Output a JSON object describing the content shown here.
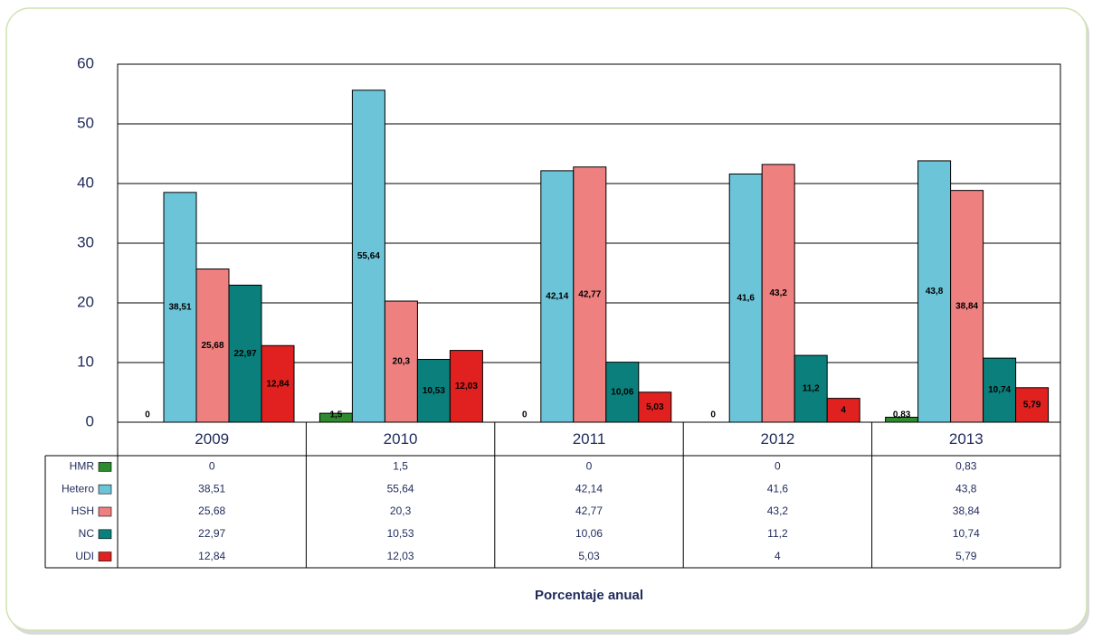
{
  "chart_data": {
    "type": "bar",
    "x_label": "Porcentaje anual",
    "categories": [
      "2009",
      "2010",
      "2011",
      "2012",
      "2013"
    ],
    "series": [
      {
        "name": "HMR",
        "color": "#2e8b2e",
        "values": [
          0,
          1.5,
          0,
          0,
          0.83
        ],
        "value_labels": [
          "0",
          "1,5",
          "0",
          "0",
          "0,83"
        ]
      },
      {
        "name": "Hetero",
        "color": "#6cc4d8",
        "values": [
          38.51,
          55.64,
          42.14,
          41.6,
          43.8
        ],
        "value_labels": [
          "38,51",
          "55,64",
          "42,14",
          "41,6",
          "43,8"
        ]
      },
      {
        "name": "HSH",
        "color": "#ee8080",
        "values": [
          25.68,
          20.3,
          42.77,
          43.2,
          38.84
        ],
        "value_labels": [
          "25,68",
          "20,3",
          "42,77",
          "43,2",
          "38,84"
        ]
      },
      {
        "name": "NC",
        "color": "#0b7f7b",
        "values": [
          22.97,
          10.53,
          10.06,
          11.2,
          10.74
        ],
        "value_labels": [
          "22,97",
          "10,53",
          "10,06",
          "11,2",
          "10,74"
        ]
      },
      {
        "name": "UDI",
        "color": "#e0211f",
        "values": [
          12.84,
          12.03,
          5.03,
          4,
          5.79
        ],
        "value_labels": [
          "12,84",
          "12,03",
          "5,03",
          "4",
          "5,79"
        ]
      }
    ],
    "ylim": [
      0,
      60
    ],
    "yticks": [
      0,
      10,
      20,
      30,
      40,
      50,
      60
    ],
    "grid": true
  }
}
